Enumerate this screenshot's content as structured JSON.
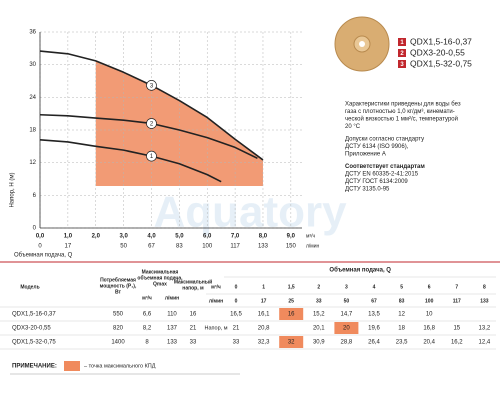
{
  "chart_data": {
    "type": "line",
    "ylabel": "Напор, Н (м)",
    "xlabel": "Объемная подача, Q",
    "xunit": "м³/ч",
    "x2unit": "л/мин",
    "xlim": [
      0,
      9.4
    ],
    "ylim": [
      0,
      36
    ],
    "xticks": [
      {
        "value": 0,
        "label": "0,0"
      },
      {
        "value": 1,
        "label": "1,0"
      },
      {
        "value": 2,
        "label": "2,0"
      },
      {
        "value": 3,
        "label": "3,0"
      },
      {
        "value": 4,
        "label": "4,0"
      },
      {
        "value": 5,
        "label": "5,0"
      },
      {
        "value": 6,
        "label": "6,0"
      },
      {
        "value": 7,
        "label": "7,0"
      },
      {
        "value": 8,
        "label": "8,0"
      },
      {
        "value": 9,
        "label": "9,0"
      }
    ],
    "x2ticks": [
      0,
      17,
      null,
      50,
      67,
      83,
      100,
      117,
      133,
      150
    ],
    "yticks": [
      0,
      6,
      12,
      18,
      24,
      30,
      36
    ],
    "grid": true,
    "legend": "right",
    "legend_color": "#c1272d",
    "highlight_color": "#f08a5d",
    "watermark": "Aquatory",
    "series": [
      {
        "name": "QDX1,5-16-0,37",
        "label": "1",
        "color": "#222222",
        "x": [
          0,
          1,
          2,
          3,
          4,
          5,
          6,
          6.5
        ],
        "values": [
          16.2,
          15.8,
          15,
          14.3,
          13.2,
          11.8,
          9.8,
          8.5
        ]
      },
      {
        "name": "QDX3-20-0,55",
        "label": "2",
        "color": "#222222",
        "x": [
          0,
          1,
          2,
          3,
          4,
          5,
          6,
          7,
          7.8
        ],
        "values": [
          20.8,
          20.6,
          20.2,
          19.8,
          19.2,
          18,
          16.6,
          14.8,
          12.8
        ]
      },
      {
        "name": "QDX1,5-32-0,75",
        "label": "3",
        "color": "#222222",
        "x": [
          0,
          1,
          2,
          3,
          4,
          5,
          6,
          7,
          8
        ],
        "values": [
          32.5,
          32,
          30.7,
          28.6,
          26.2,
          23.4,
          20.3,
          16.3,
          12.5
        ]
      }
    ]
  },
  "info": {
    "conditions": [
      "Характеристики приведены для воды без",
      "газа с плотностью 1,0 кг/дм³, кинемати-",
      "ческой вязкостью 1 мм²/с, температурой",
      "20 °С"
    ],
    "tolerance": [
      "Допуски согласно стандарту",
      "ДСТУ 6134 (ISO 9906),",
      "Приложение А"
    ],
    "standards_title": "Соответствует стандартам",
    "standards": [
      "ДСТУ EN 60335-2-41:2015",
      "ДСТУ ГОСТ 6134:2009",
      "ДСТУ 3135.0-95"
    ]
  },
  "table": {
    "model": "Модель",
    "power": [
      "Потребляемая",
      "мощность (P₁),",
      "Вт"
    ],
    "qmax": [
      "Максимальная",
      "объемная подача,",
      "Qmax"
    ],
    "qmax_m3": "м³/ч",
    "qmax_l": "л/мин",
    "hmax": [
      "Максимальный",
      "напор, м"
    ],
    "flow": "Объемная подача, Q",
    "unit_m3": "м³/ч",
    "unit_l": "л/мин",
    "head": "Напор, м",
    "flow_m3": [
      "0",
      "1",
      "1,5",
      "2",
      "3",
      "4",
      "5",
      "6",
      "7",
      "8"
    ],
    "flow_l": [
      "0",
      "17",
      "25",
      "33",
      "50",
      "67",
      "83",
      "100",
      "117",
      "133"
    ],
    "rows": [
      [
        "QDX1,5-16-0,37",
        "550",
        "6,6",
        "110",
        "16"
      ],
      [
        "QDX3-20-0,55",
        "820",
        "8,2",
        "137",
        "21"
      ],
      [
        "QDX1,5-32-0,75",
        "1400",
        "8",
        "133",
        "33"
      ]
    ],
    "heads": [
      [
        "16,5",
        "16,1",
        "16",
        "15,2",
        "14,7",
        "13,5",
        "12",
        "10",
        null,
        null
      ],
      [
        "21",
        "20,8",
        null,
        "20,1",
        "20",
        "19,6",
        "18",
        "16,8",
        "15",
        "13,2"
      ],
      [
        "33",
        "32,3",
        "32",
        "30,9",
        "28,8",
        "26,4",
        "23,5",
        "20,4",
        "16,2",
        "12,4"
      ]
    ],
    "best": [
      2,
      4,
      2
    ]
  },
  "note": {
    "label": "ПРИМЕЧАНИЕ:",
    "text": "– точка максимального КПД"
  }
}
